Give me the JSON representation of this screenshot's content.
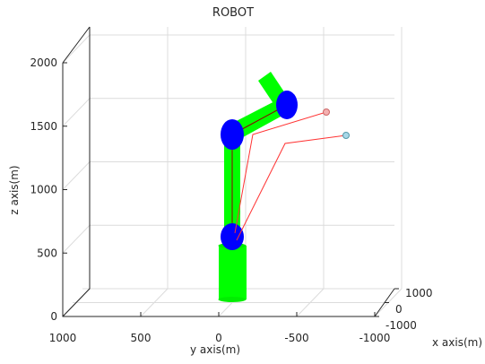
{
  "chart_data": {
    "type": "3d-plot",
    "title": "ROBOT",
    "xlabel": "x axis(m)",
    "ylabel": "y axis(m)",
    "zlabel": "z axis(m)",
    "xlim": [
      -1000,
      1000
    ],
    "xticks": [
      -1000,
      0,
      1000
    ],
    "ylim": [
      1000,
      -1000
    ],
    "yticks": [
      1000,
      500,
      0,
      -500,
      -1000
    ],
    "zlim": [
      0,
      2000
    ],
    "zticks": [
      0,
      500,
      1000,
      1500,
      2000
    ],
    "grid": true
  }
}
